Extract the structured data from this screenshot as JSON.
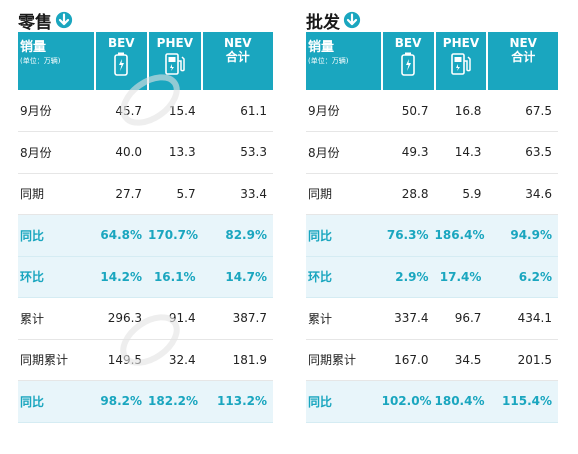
{
  "colors": {
    "accent": "#1aa6bf",
    "highlight_bg": "#e8f5fa"
  },
  "header": {
    "volume_label": "销量",
    "unit_label": "(单位：万辆)",
    "bev": "BEV",
    "phev": "PHEV",
    "nev": "NEV",
    "nev_sub": "合计"
  },
  "retail": {
    "title": "零售",
    "rows": [
      {
        "label": "9月份",
        "bev": "45.7",
        "phev": "15.4",
        "nev": "61.1",
        "highlight": false
      },
      {
        "label": "8月份",
        "bev": "40.0",
        "phev": "13.3",
        "nev": "53.3",
        "highlight": false
      },
      {
        "label": "同期",
        "bev": "27.7",
        "phev": "5.7",
        "nev": "33.4",
        "highlight": false
      },
      {
        "label": "同比",
        "bev": "64.8%",
        "phev": "170.7%",
        "nev": "82.9%",
        "highlight": true
      },
      {
        "label": "环比",
        "bev": "14.2%",
        "phev": "16.1%",
        "nev": "14.7%",
        "highlight": true
      },
      {
        "label": "累计",
        "bev": "296.3",
        "phev": "91.4",
        "nev": "387.7",
        "highlight": false
      },
      {
        "label": "同期累计",
        "bev": "149.5",
        "phev": "32.4",
        "nev": "181.9",
        "highlight": false
      },
      {
        "label": "同比",
        "bev": "98.2%",
        "phev": "182.2%",
        "nev": "113.2%",
        "highlight": true
      }
    ]
  },
  "wholesale": {
    "title": "批发",
    "rows": [
      {
        "label": "9月份",
        "bev": "50.7",
        "phev": "16.8",
        "nev": "67.5",
        "highlight": false
      },
      {
        "label": "8月份",
        "bev": "49.3",
        "phev": "14.3",
        "nev": "63.5",
        "highlight": false
      },
      {
        "label": "同期",
        "bev": "28.8",
        "phev": "5.9",
        "nev": "34.6",
        "highlight": false
      },
      {
        "label": "同比",
        "bev": "76.3%",
        "phev": "186.4%",
        "nev": "94.9%",
        "highlight": true
      },
      {
        "label": "环比",
        "bev": "2.9%",
        "phev": "17.4%",
        "nev": "6.2%",
        "highlight": true
      },
      {
        "label": "累计",
        "bev": "337.4",
        "phev": "96.7",
        "nev": "434.1",
        "highlight": false
      },
      {
        "label": "同期累计",
        "bev": "167.0",
        "phev": "34.5",
        "nev": "201.5",
        "highlight": false
      },
      {
        "label": "同比",
        "bev": "102.0%",
        "phev": "180.4%",
        "nev": "115.4%",
        "highlight": true
      }
    ]
  }
}
